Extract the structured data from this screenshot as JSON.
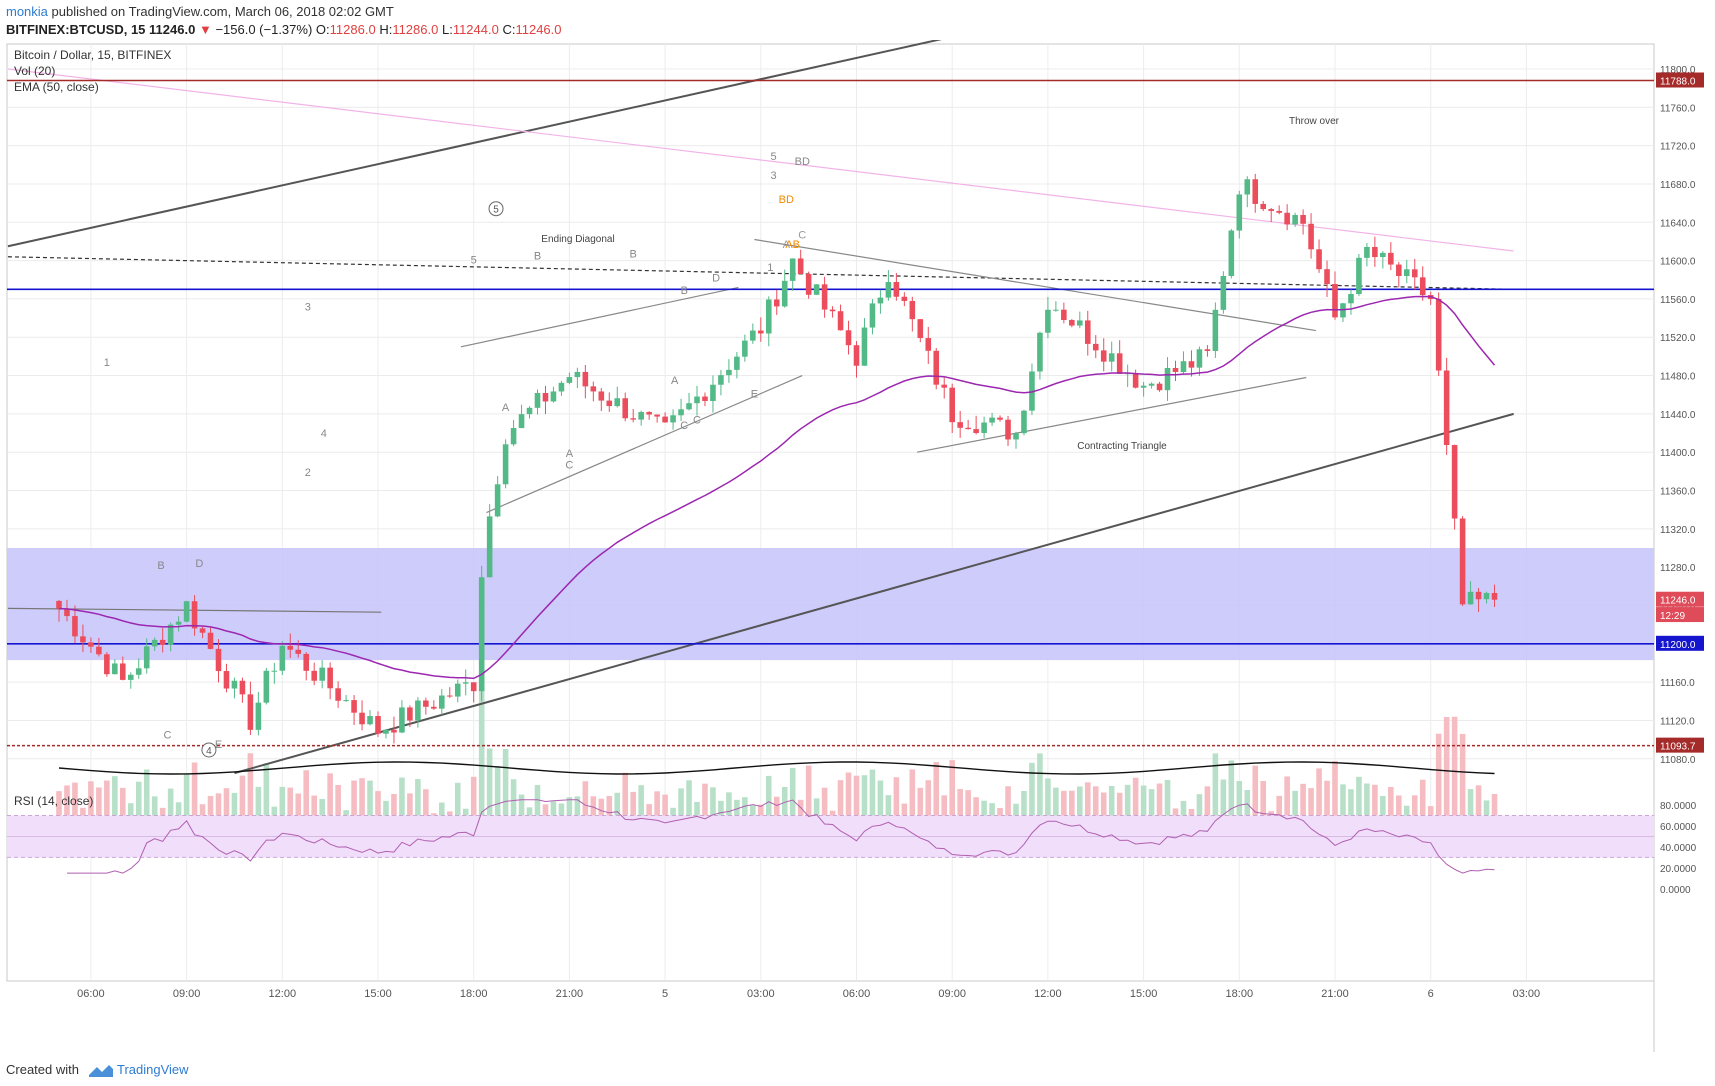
{
  "header": {
    "author": "monkia",
    "published_text": " published on TradingView.com, March 06, 2018 02:02 GMT",
    "symbol": "BITFINEX:BTCUSD, 15",
    "last": "11246.0",
    "change": "−156.0 (−1.37%)",
    "o_label": "O:",
    "o_value": "11286.0",
    "h_label": "H:",
    "h_value": "11286.0",
    "l_label": "L:",
    "l_value": "11244.0",
    "c_label": "C:",
    "c_value": "11246.0"
  },
  "legend": {
    "title": "Bitcoin / Dollar, 15, BITFINEX",
    "vol": "Vol (20)",
    "ema": "EMA (50, close)",
    "rsi": "RSI (14, close)"
  },
  "footer": {
    "created_with": "Created with",
    "brand": "TradingView"
  },
  "annotations": {
    "ending_diagonal": "Ending Diagonal",
    "contracting_triangle": "Contracting Triangle",
    "throw_over": "Throw over",
    "wave_labels": [
      {
        "text": "1",
        "t": 1.5,
        "p": 11490
      },
      {
        "text": "3",
        "t": 7.8,
        "p": 11548
      },
      {
        "text": "5",
        "t": 13.0,
        "p": 11597
      },
      {
        "text": "2",
        "t": 7.8,
        "p": 11375
      },
      {
        "text": "4",
        "t": 8.3,
        "p": 11416
      },
      {
        "text": "A",
        "t": 14.0,
        "p": 11443
      },
      {
        "text": "B",
        "t": 15.0,
        "p": 11601
      },
      {
        "text": "A",
        "t": 16.0,
        "p": 11395
      },
      {
        "text": "C",
        "t": 16.0,
        "p": 11383
      },
      {
        "text": "B",
        "t": 18.0,
        "p": 11603
      },
      {
        "text": "A",
        "t": 19.3,
        "p": 11471
      },
      {
        "text": "B",
        "t": 19.6,
        "p": 11565
      },
      {
        "text": "C",
        "t": 19.6,
        "p": 11424
      },
      {
        "text": "C",
        "t": 20.0,
        "p": 11430
      },
      {
        "text": "D",
        "t": 20.6,
        "p": 11578
      },
      {
        "text": "E",
        "t": 21.8,
        "p": 11457
      },
      {
        "text": "1",
        "t": 22.3,
        "p": 11589
      },
      {
        "text": "3",
        "t": 22.4,
        "p": 11685
      },
      {
        "text": "5",
        "t": 22.4,
        "p": 11705
      },
      {
        "text": "BD",
        "t": 23.3,
        "p": 11700
      },
      {
        "text": "B",
        "t": 3.2,
        "p": 11278
      },
      {
        "text": "D",
        "t": 4.4,
        "p": 11280
      },
      {
        "text": "C",
        "t": 3.4,
        "p": 11101
      },
      {
        "text": "E",
        "t": 5.0,
        "p": 11091
      }
    ],
    "orange_labels": [
      {
        "text": "BD",
        "t": 22.8,
        "p": 11660
      },
      {
        "text": "AB",
        "t": 23.0,
        "p": 11613
      }
    ],
    "gray_small": [
      {
        "text": "A",
        "t": 22.8,
        "p": 11613
      },
      {
        "text": "C",
        "t": 23.3,
        "p": 11623
      }
    ],
    "circled": [
      {
        "text": "5",
        "t": 13.7,
        "p": 11650
      },
      {
        "text": "4",
        "t": 4.7,
        "p": 11085
      }
    ]
  },
  "price_axis": {
    "ticks": [
      "11800.0",
      "11760.0",
      "11720.0",
      "11680.0",
      "11640.0",
      "11600.0",
      "11560.0",
      "11520.0",
      "11480.0",
      "11440.0",
      "11400.0",
      "11360.0",
      "11320.0",
      "11280.0",
      "11240.0",
      "11200.0",
      "11160.0",
      "11120.0",
      "11080.0"
    ],
    "badges": [
      {
        "text": "11788.0",
        "color": "#a52a2a",
        "p": 11788
      },
      {
        "text": "11246.0",
        "color": "#e04b5a",
        "p": 11246
      },
      {
        "text": "12:29",
        "color": "#e04b5a",
        "p": 11230
      },
      {
        "text": "11200.0",
        "color": "#1515d0",
        "p": 11200
      },
      {
        "text": "11093.7",
        "color": "#a52a2a",
        "p": 11093.7
      }
    ]
  },
  "rsi_axis": {
    "ticks": [
      "80.0000",
      "60.0000",
      "40.0000",
      "20.0000",
      "0.0000"
    ]
  },
  "time_axis": {
    "labels": [
      {
        "text": "06:00",
        "t": 1
      },
      {
        "text": "09:00",
        "t": 4
      },
      {
        "text": "12:00",
        "t": 7
      },
      {
        "text": "15:00",
        "t": 10
      },
      {
        "text": "18:00",
        "t": 13
      },
      {
        "text": "21:00",
        "t": 16
      },
      {
        "text": "5",
        "t": 19
      },
      {
        "text": "03:00",
        "t": 22
      },
      {
        "text": "06:00",
        "t": 25
      },
      {
        "text": "09:00",
        "t": 28
      },
      {
        "text": "12:00",
        "t": 31
      },
      {
        "text": "15:00",
        "t": 34
      },
      {
        "text": "18:00",
        "t": 37
      },
      {
        "text": "21:00",
        "t": 40
      },
      {
        "text": "6",
        "t": 43
      },
      {
        "text": "03:00",
        "t": 46
      }
    ]
  },
  "colors": {
    "up": "#53b987",
    "down": "#eb4d5c",
    "up_vol": "#b8e0c8",
    "down_vol": "#f5bcc2",
    "ema": "#9c27b0",
    "support_zone": "#c9c6fb",
    "red_line": "#a52a2a",
    "blue_line": "#1515d0",
    "rsi_line": "#b05fb0",
    "rsi_band": "#f0defa"
  },
  "chart_data": {
    "type": "candlestick",
    "symbol": "BTCUSD",
    "timeframe": "15",
    "exchange": "BITFINEX",
    "price_range": [
      11065,
      11830
    ],
    "horizontal_levels": [
      {
        "price": 11788.0,
        "color": "#a52a2a",
        "style": "solid"
      },
      {
        "price": 11570.0,
        "color": "#1515d0",
        "style": "solid"
      },
      {
        "price": 11200.0,
        "color": "#1515d0",
        "style": "solid"
      },
      {
        "price": 11093.7,
        "color": "#a52a2a",
        "style": "dashed"
      }
    ],
    "support_zone": [
      11183,
      11300
    ],
    "keypoints": [
      {
        "time": "Mar 4 05:00",
        "price": 11237
      },
      {
        "time": "Mar 4 07:00",
        "price": 11160
      },
      {
        "time": "Mar 4 09:00",
        "price": 11240
      },
      {
        "time": "Mar 4 11:00",
        "price": 11120
      },
      {
        "time": "Mar 4 12:00",
        "price": 11200
      },
      {
        "time": "Mar 4 15:00",
        "price": 11110
      },
      {
        "time": "Mar 4 18:00",
        "price": 11160
      },
      {
        "time": "Mar 4 18:00",
        "price": 11300
      },
      {
        "time": "Mar 4 19:00",
        "price": 11420
      },
      {
        "time": "Mar 4 21:00",
        "price": 11480
      },
      {
        "time": "Mar 5 00:00",
        "price": 11420
      },
      {
        "time": "Mar 5 03:00",
        "price": 11530
      },
      {
        "time": "Mar 5 04:00",
        "price": 11600
      },
      {
        "time": "Mar 5 06:00",
        "price": 11500
      },
      {
        "time": "Mar 5 07:00",
        "price": 11590
      },
      {
        "time": "Mar 5 09:00",
        "price": 11440
      },
      {
        "time": "Mar 5 11:00",
        "price": 11420
      },
      {
        "time": "Mar 5 12:00",
        "price": 11560
      },
      {
        "time": "Mar 5 15:00",
        "price": 11470
      },
      {
        "time": "Mar 5 17:00",
        "price": 11500
      },
      {
        "time": "Mar 5 18:00",
        "price": 11680
      },
      {
        "time": "Mar 5 20:00",
        "price": 11640
      },
      {
        "time": "Mar 5 21:00",
        "price": 11540
      },
      {
        "time": "Mar 5 22:00",
        "price": 11610
      },
      {
        "time": "Mar 6 00:00",
        "price": 11560
      },
      {
        "time": "Mar 6 01:00",
        "price": 11240
      },
      {
        "time": "Mar 6 02:00",
        "price": 11246
      }
    ],
    "last_close": 11246.0,
    "rsi_last": 32
  }
}
